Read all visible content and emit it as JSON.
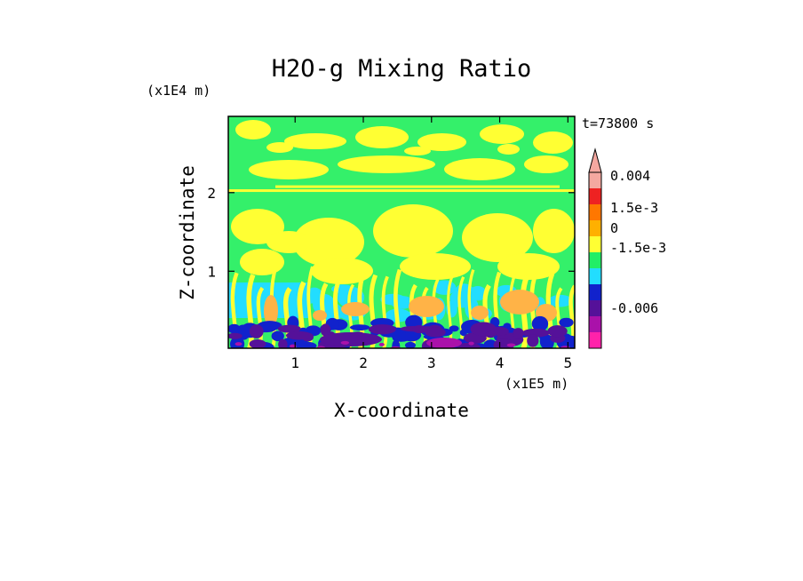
{
  "chart_data": {
    "type": "heatmap",
    "title": "H2O-g Mixing Ratio",
    "xlabel": "X-coordinate",
    "ylabel": "Z-coordinate",
    "x_unit_label": "(x1E5 m)",
    "y_unit_label": "(x1E4 m)",
    "time_label": "t=73800 s",
    "x_ticks": [
      "1",
      "2",
      "3",
      "4",
      "5"
    ],
    "y_ticks": [
      "1",
      "2"
    ],
    "xlim": [
      0.02,
      5.1
    ],
    "ylim": [
      0.02,
      2.97
    ],
    "colorbar": {
      "labels": [
        "0.004",
        "1.5e-3",
        "0",
        "-1.5e-3",
        "-0.006"
      ],
      "colors": [
        "#f4a8a0",
        "#ee2222",
        "#ff7700",
        "#ffb000",
        "#ffff33",
        "#22ee66",
        "#22ddff",
        "#1122cc",
        "#551199",
        "#aa11aa",
        "#ff22aa"
      ]
    },
    "field_colors": {
      "background": "#34f06a",
      "positive": "#ffff33",
      "orange": "#ffa500",
      "light_orange": "#ffb347",
      "cyan": "#22ddff",
      "blue": "#1122cc",
      "purple": "#551199",
      "magenta": "#aa11aa"
    }
  }
}
